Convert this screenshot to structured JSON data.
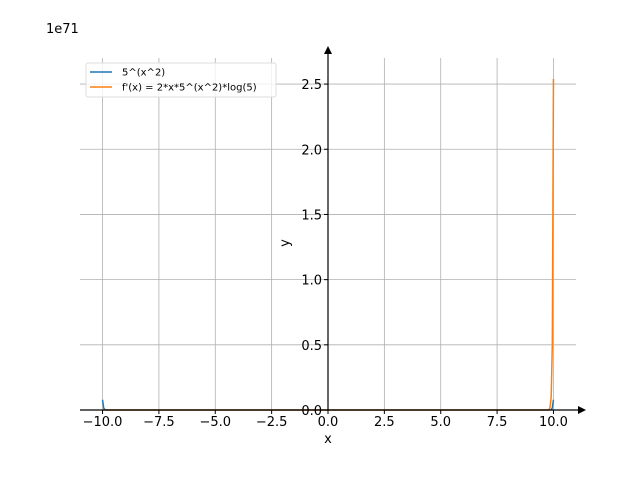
{
  "chart_data": {
    "type": "line",
    "xlabel": "x",
    "ylabel": "y",
    "offset_text": "1e71",
    "xlim": [
      -11,
      11
    ],
    "ylim": [
      0,
      2.7
    ],
    "y_scale_exponent": 71,
    "x_ticks": [
      -10,
      -7.5,
      -5,
      -2.5,
      0,
      2.5,
      5,
      7.5,
      10
    ],
    "x_tick_labels": [
      "−10.0",
      "−7.5",
      "−5.0",
      "−2.5",
      "0.0",
      "2.5",
      "5.0",
      "7.5",
      "10.0"
    ],
    "y_ticks": [
      0,
      0.5,
      1.0,
      1.5,
      2.0,
      2.5
    ],
    "y_tick_labels": [
      "0.0",
      "0.5",
      "1.0",
      "1.5",
      "2.0",
      "2.5"
    ],
    "grid": true,
    "legend_position": "top-left",
    "series": [
      {
        "name": "5^(x^2)",
        "color": "#1f77b4",
        "x_range": [
          -10,
          10
        ],
        "values_note": ""
      },
      {
        "name": "f'(x) = 2*x*5^(x^2)*log(5)",
        "color": "#ff7f0e",
        "x_range": [
          -10,
          10
        ],
        "values_note": ""
      }
    ]
  }
}
